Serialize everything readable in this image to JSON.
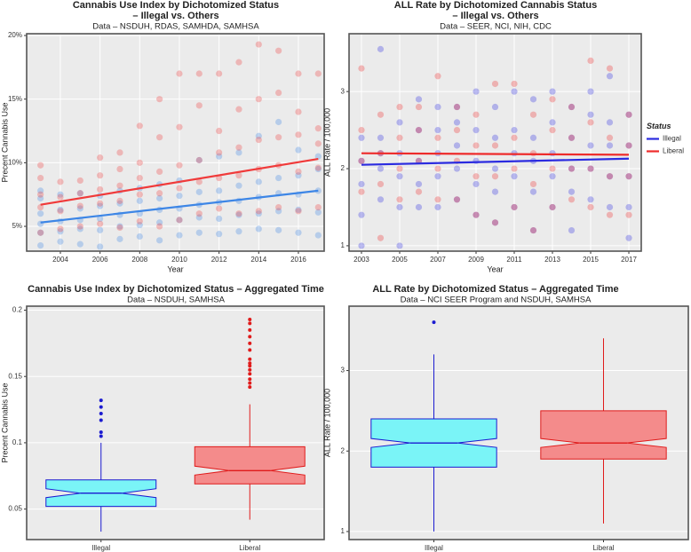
{
  "chart_data": [
    {
      "type": "scatter",
      "title": [
        "Cannabis Use Index by Dichotomized Status",
        "– Illegal vs. Others"
      ],
      "subtitle": "Data – NSDUH, RDAS, SAMHDA, SAMHSA",
      "x_label": "Year",
      "y_label": "Precent Cannabis Use",
      "x": [
        2003,
        2004,
        2005,
        2006,
        2007,
        2008,
        2009,
        2010,
        2011,
        2012,
        2013,
        2014,
        2015,
        2016,
        2017
      ],
      "xlim": [
        2002.3,
        2017.3
      ],
      "ylim": [
        3.05,
        20.14
      ],
      "xticks": [
        2004,
        2006,
        2008,
        2010,
        2012,
        2014,
        2016
      ],
      "yticks": [
        {
          "value": 5,
          "label": "5%"
        },
        {
          "value": 10,
          "label": "10%"
        },
        {
          "value": 15,
          "label": "15%"
        },
        {
          "value": 20,
          "label": "20%"
        }
      ],
      "grid": true,
      "trend_x": [
        2003,
        2017
      ],
      "series": [
        {
          "name": "Illegal",
          "color": "#3d86e6",
          "trend": [
            5.3,
            7.8
          ],
          "values": [
            [
              3.5,
              4.5,
              5.2,
              6.0,
              7.2,
              7.8
            ],
            [
              3.8,
              4.6,
              5.4,
              6.3,
              7.5
            ],
            [
              3.6,
              4.8,
              5.5,
              6.4,
              7.6
            ],
            [
              3.4,
              4.7,
              5.6,
              6.6,
              7.4
            ],
            [
              4.0,
              5.0,
              5.9,
              6.8,
              7.8
            ],
            [
              4.2,
              5.1,
              6.0,
              7.0,
              8.0
            ],
            [
              3.9,
              5.3,
              6.3,
              7.2,
              8.3
            ],
            [
              4.3,
              5.5,
              6.4,
              7.4,
              8.6
            ],
            [
              4.5,
              5.7,
              6.7,
              7.7,
              10.2
            ],
            [
              4.4,
              5.6,
              6.9,
              7.8,
              10.5
            ],
            [
              4.6,
              5.9,
              7.0,
              8.2,
              10.8
            ],
            [
              4.8,
              6.0,
              7.3,
              8.5,
              12.1
            ],
            [
              4.7,
              6.2,
              7.6,
              8.8,
              13.2
            ],
            [
              4.5,
              6.3,
              7.5,
              9.0,
              11.0
            ],
            [
              4.3,
              6.1,
              7.8,
              9.5,
              10.5
            ]
          ]
        },
        {
          "name": "Liberal",
          "color": "#f03a3a",
          "trend": [
            6.7,
            10.3
          ],
          "values": [
            [
              4.5,
              6.5,
              7.5,
              8.8,
              9.8
            ],
            [
              4.8,
              6.2,
              7.3,
              8.5
            ],
            [
              5.0,
              6.6,
              7.6,
              8.6
            ],
            [
              5.2,
              6.8,
              7.9,
              9.0,
              10.4
            ],
            [
              4.9,
              7.0,
              8.2,
              9.5,
              10.8
            ],
            [
              5.4,
              7.5,
              8.8,
              10.0,
              12.9
            ],
            [
              5.0,
              7.6,
              9.3,
              12.0,
              15.0
            ],
            [
              5.5,
              8.0,
              9.8,
              12.8,
              17.0
            ],
            [
              6.0,
              8.5,
              10.2,
              14.5,
              17.0
            ],
            [
              6.4,
              8.8,
              10.8,
              12.5,
              17.0
            ],
            [
              6.0,
              9.0,
              11.2,
              14.2,
              17.9
            ],
            [
              6.2,
              9.5,
              11.8,
              15.0,
              19.3
            ],
            [
              6.5,
              9.8,
              12.0,
              15.5,
              18.8
            ],
            [
              6.2,
              9.3,
              12.2,
              14.0,
              17.0
            ],
            [
              6.5,
              9.6,
              11.5,
              12.7,
              17.0
            ]
          ]
        }
      ]
    },
    {
      "type": "scatter",
      "title": [
        "ALL Rate by Dichotomized Cannabis Status",
        "– Illegal vs. Others"
      ],
      "subtitle": "Data – SEER, NCI, NIH, CDC",
      "x_label": "Year",
      "y_label": "ALL Rate / 100,000",
      "x": [
        2003,
        2004,
        2005,
        2006,
        2007,
        2008,
        2009,
        2010,
        2011,
        2012,
        2013,
        2014,
        2015,
        2016,
        2017
      ],
      "xlim": [
        2002.35,
        2017.65
      ],
      "ylim": [
        0.93,
        3.75
      ],
      "xticks": [
        2003,
        2005,
        2007,
        2009,
        2011,
        2013,
        2015,
        2017
      ],
      "yticks": [
        1,
        2,
        3
      ],
      "grid": true,
      "legend": "right",
      "legend_title": "Status",
      "trend_x": [
        2003,
        2017
      ],
      "series": [
        {
          "name": "Illegal",
          "color": "#2b2be0",
          "trend": [
            2.05,
            2.13
          ],
          "values": [
            [
              1.0,
              1.4,
              1.8,
              2.1,
              2.4
            ],
            [
              1.6,
              2.0,
              2.2,
              2.4,
              3.55
            ],
            [
              1.0,
              1.5,
              1.9,
              2.2,
              2.6
            ],
            [
              1.5,
              1.8,
              2.1,
              2.5,
              2.9
            ],
            [
              1.5,
              1.9,
              2.2,
              2.5,
              2.8
            ],
            [
              1.6,
              2.0,
              2.3,
              2.6,
              2.8
            ],
            [
              1.4,
              1.8,
              2.1,
              2.5,
              3.0
            ],
            [
              1.3,
              1.7,
              2.0,
              2.4,
              2.8
            ],
            [
              1.5,
              1.9,
              2.2,
              2.5,
              3.0
            ],
            [
              1.2,
              1.7,
              2.1,
              2.4,
              2.9
            ],
            [
              1.5,
              1.9,
              2.2,
              2.6,
              3.0
            ],
            [
              1.2,
              1.7,
              2.0,
              2.4,
              2.8
            ],
            [
              1.6,
              2.0,
              2.3,
              2.7,
              3.0
            ],
            [
              1.5,
              1.9,
              2.3,
              2.6,
              3.2
            ],
            [
              1.1,
              1.5,
              1.9,
              2.3,
              2.7
            ]
          ]
        },
        {
          "name": "Liberal",
          "color": "#ee2b2b",
          "trend": [
            2.2,
            2.18
          ],
          "values": [
            [
              1.7,
              2.1,
              2.5,
              3.3
            ],
            [
              1.1,
              1.8,
              2.2,
              2.7
            ],
            [
              1.6,
              2.0,
              2.4,
              2.8
            ],
            [
              1.7,
              2.1,
              2.5,
              2.8
            ],
            [
              1.6,
              2.0,
              2.4,
              3.2
            ],
            [
              1.6,
              2.1,
              2.5,
              2.8
            ],
            [
              1.4,
              1.9,
              2.3,
              2.7
            ],
            [
              1.3,
              1.9,
              2.3,
              3.1
            ],
            [
              1.5,
              2.0,
              2.4,
              3.1
            ],
            [
              1.2,
              1.8,
              2.2,
              2.7
            ],
            [
              1.5,
              2.0,
              2.5,
              2.9
            ],
            [
              1.6,
              2.0,
              2.4,
              2.8
            ],
            [
              1.5,
              2.0,
              2.6,
              3.4
            ],
            [
              1.4,
              1.9,
              2.4,
              3.3
            ],
            [
              1.4,
              1.9,
              2.3,
              2.7
            ]
          ]
        }
      ]
    },
    {
      "type": "box",
      "title": "Cannabis Use Index by Dichotomized Status – Aggregated Time",
      "subtitle": "Data – NSDUH, SAMHSA",
      "y_label": "Precent Cannabis Use",
      "ylim": [
        0.027,
        0.203
      ],
      "yticks": [
        0.05,
        0.1,
        0.15,
        0.2
      ],
      "grid": true,
      "boxes": [
        {
          "name": "Illegal",
          "color": "#7af4f7",
          "edge": "#1b1bd0",
          "whisker_low": 0.033,
          "q1": 0.052,
          "median": 0.062,
          "q3": 0.072,
          "whisker_high": 0.1,
          "outliers": [
            0.105,
            0.108,
            0.117,
            0.122,
            0.127,
            0.132
          ]
        },
        {
          "name": "Liberal",
          "color": "#f48b8b",
          "edge": "#e01b1b",
          "whisker_low": 0.042,
          "q1": 0.069,
          "median": 0.079,
          "q3": 0.097,
          "whisker_high": 0.129,
          "outliers": [
            0.142,
            0.145,
            0.148,
            0.152,
            0.155,
            0.158,
            0.16,
            0.163,
            0.17,
            0.175,
            0.18,
            0.185,
            0.19,
            0.193
          ]
        }
      ]
    },
    {
      "type": "box",
      "title": "ALL Rate by Dichotomized Status – Aggregated Time",
      "subtitle": "Data – NCI SEER Program and NSDUH, SAMHSA",
      "y_label": "ALL Rate / 100,000",
      "ylim": [
        0.9,
        3.8
      ],
      "yticks": [
        1,
        2,
        3
      ],
      "grid": true,
      "boxes": [
        {
          "name": "Illegal",
          "color": "#7af4f7",
          "edge": "#1b1bd0",
          "whisker_low": 1.0,
          "q1": 1.8,
          "median": 2.1,
          "q3": 2.4,
          "whisker_high": 3.2,
          "outliers": [
            3.6
          ]
        },
        {
          "name": "Liberal",
          "color": "#f48b8b",
          "edge": "#e01b1b",
          "whisker_low": 1.1,
          "q1": 1.9,
          "median": 2.1,
          "q3": 2.5,
          "whisker_high": 3.4,
          "outliers": []
        }
      ]
    }
  ]
}
